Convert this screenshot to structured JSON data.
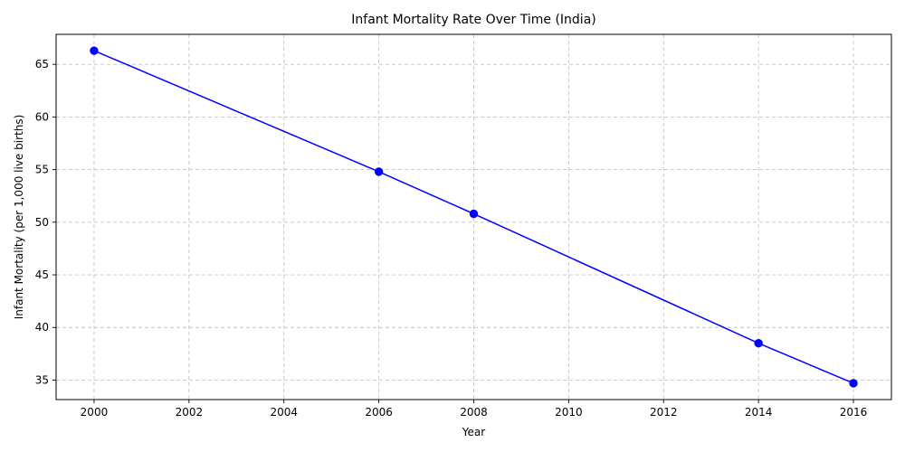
{
  "chart_data": {
    "type": "line",
    "title": "Infant Mortality Rate Over Time (India)",
    "xlabel": "Year",
    "ylabel": "Infant Mortality (per 1,000 live births)",
    "x": [
      2000,
      2006,
      2008,
      2014,
      2016
    ],
    "series": [
      {
        "values": [
          66.3,
          54.8,
          50.8,
          38.5,
          34.7
        ],
        "color": "#0000ff",
        "marker": "circle"
      }
    ],
    "xlim": [
      1999.2,
      2016.8
    ],
    "ylim": [
      33.15,
      67.85
    ],
    "xticks": [
      2000,
      2002,
      2004,
      2006,
      2008,
      2010,
      2012,
      2014,
      2016
    ],
    "yticks": [
      35,
      40,
      45,
      50,
      55,
      60,
      65
    ],
    "grid": true,
    "legend": "none"
  }
}
